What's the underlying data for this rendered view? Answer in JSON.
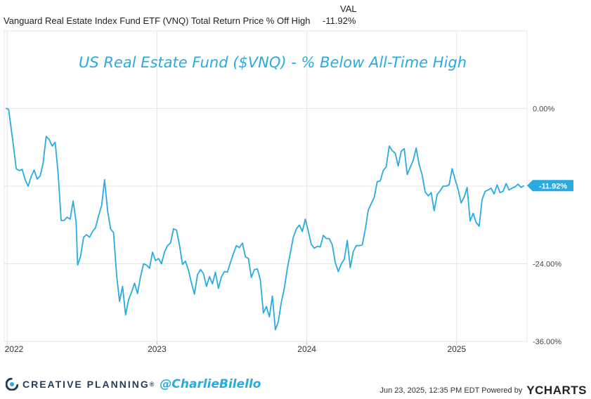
{
  "legend": {
    "val_header": "VAL",
    "series_name": "Vanguard Real Estate Index Fund ETF (VNQ) Total Return Price % Off High",
    "series_value": "-11.92%"
  },
  "footer": {
    "brand_name": "CREATIVE PLANNING",
    "brand_mark": "®",
    "handle": "@CharlieBilello",
    "timestamp": "Jun 23, 2025, 12:35 PM EDT Powered by",
    "logo_y": "Y",
    "logo_rest": "CHARTS"
  },
  "colors": {
    "line": "#29abe2",
    "title": "#29abe2",
    "grid": "#e6e6e6",
    "brand": "#1f3d5c"
  },
  "chart_data": {
    "type": "line",
    "title": "US Real Estate Fund ($VNQ) - % Below All-Time High",
    "ylim": [
      -36,
      12
    ],
    "yticks": [
      {
        "value": 0,
        "label": "0.00%"
      },
      {
        "value": -24,
        "label": "-24.00%"
      },
      {
        "value": -36,
        "label": "-36.00%"
      }
    ],
    "xticks": [
      {
        "value": 2022.0,
        "label": "2022"
      },
      {
        "value": 2023.0,
        "label": "2023"
      },
      {
        "value": 2024.0,
        "label": "2024"
      },
      {
        "value": 2025.0,
        "label": "2025"
      }
    ],
    "xlim": [
      2021.98,
      2025.47
    ],
    "grid": true,
    "end_label": "-11.92%",
    "series": [
      {
        "name": "Vanguard Real Estate Index Fund ETF (VNQ) Total Return Price % Off High",
        "points": [
          [
            2021.99,
            0.0
          ],
          [
            2022.0,
            0.0
          ],
          [
            2022.01,
            -0.2
          ],
          [
            2022.03,
            -3.8
          ],
          [
            2022.04,
            -5.5
          ],
          [
            2022.06,
            -9.3
          ],
          [
            2022.08,
            -9.6
          ],
          [
            2022.1,
            -9.4
          ],
          [
            2022.12,
            -11.0
          ],
          [
            2022.14,
            -12.0
          ],
          [
            2022.16,
            -10.5
          ],
          [
            2022.18,
            -9.5
          ],
          [
            2022.2,
            -10.9
          ],
          [
            2022.22,
            -10.4
          ],
          [
            2022.24,
            -8.4
          ],
          [
            2022.26,
            -4.3
          ],
          [
            2022.28,
            -4.8
          ],
          [
            2022.3,
            -5.8
          ],
          [
            2022.32,
            -5.2
          ],
          [
            2022.34,
            -10.0
          ],
          [
            2022.36,
            -17.3
          ],
          [
            2022.38,
            -17.3
          ],
          [
            2022.4,
            -16.8
          ],
          [
            2022.42,
            -17.1
          ],
          [
            2022.44,
            -14.3
          ],
          [
            2022.46,
            -17.5
          ],
          [
            2022.47,
            -24.2
          ],
          [
            2022.49,
            -22.8
          ],
          [
            2022.51,
            -19.9
          ],
          [
            2022.53,
            -19.5
          ],
          [
            2022.55,
            -19.9
          ],
          [
            2022.57,
            -19.0
          ],
          [
            2022.59,
            -18.4
          ],
          [
            2022.61,
            -16.6
          ],
          [
            2022.63,
            -15.0
          ],
          [
            2022.65,
            -11.0
          ],
          [
            2022.67,
            -15.8
          ],
          [
            2022.69,
            -18.6
          ],
          [
            2022.71,
            -19.2
          ],
          [
            2022.73,
            -25.7
          ],
          [
            2022.75,
            -29.8
          ],
          [
            2022.77,
            -27.5
          ],
          [
            2022.79,
            -31.9
          ],
          [
            2022.81,
            -29.6
          ],
          [
            2022.83,
            -28.4
          ],
          [
            2022.85,
            -27.0
          ],
          [
            2022.87,
            -28.6
          ],
          [
            2022.89,
            -26.0
          ],
          [
            2022.91,
            -24.0
          ],
          [
            2022.93,
            -24.2
          ],
          [
            2022.95,
            -24.7
          ],
          [
            2022.97,
            -22.2
          ],
          [
            2022.99,
            -23.5
          ],
          [
            2023.01,
            -23.2
          ],
          [
            2023.03,
            -24.0
          ],
          [
            2023.05,
            -22.2
          ],
          [
            2023.07,
            -21.2
          ],
          [
            2023.09,
            -20.8
          ],
          [
            2023.11,
            -18.6
          ],
          [
            2023.13,
            -18.8
          ],
          [
            2023.15,
            -21.1
          ],
          [
            2023.17,
            -24.1
          ],
          [
            2023.19,
            -23.6
          ],
          [
            2023.21,
            -25.0
          ],
          [
            2023.23,
            -27.0
          ],
          [
            2023.25,
            -28.7
          ],
          [
            2023.27,
            -25.7
          ],
          [
            2023.29,
            -24.9
          ],
          [
            2023.31,
            -25.5
          ],
          [
            2023.33,
            -27.5
          ],
          [
            2023.35,
            -26.0
          ],
          [
            2023.37,
            -27.1
          ],
          [
            2023.39,
            -25.3
          ],
          [
            2023.41,
            -27.8
          ],
          [
            2023.43,
            -26.0
          ],
          [
            2023.45,
            -25.2
          ],
          [
            2023.47,
            -25.3
          ],
          [
            2023.49,
            -23.8
          ],
          [
            2023.51,
            -22.4
          ],
          [
            2023.53,
            -21.2
          ],
          [
            2023.55,
            -21.5
          ],
          [
            2023.57,
            -20.8
          ],
          [
            2023.59,
            -22.9
          ],
          [
            2023.61,
            -23.2
          ],
          [
            2023.63,
            -26.1
          ],
          [
            2023.65,
            -24.9
          ],
          [
            2023.67,
            -24.8
          ],
          [
            2023.69,
            -26.5
          ],
          [
            2023.71,
            -31.6
          ],
          [
            2023.73,
            -30.6
          ],
          [
            2023.75,
            -32.2
          ],
          [
            2023.77,
            -29.0
          ],
          [
            2023.79,
            -34.2
          ],
          [
            2023.81,
            -32.9
          ],
          [
            2023.83,
            -29.9
          ],
          [
            2023.85,
            -27.8
          ],
          [
            2023.87,
            -24.7
          ],
          [
            2023.89,
            -22.3
          ],
          [
            2023.91,
            -19.9
          ],
          [
            2023.93,
            -18.6
          ],
          [
            2023.95,
            -18.0
          ],
          [
            2023.97,
            -19.0
          ],
          [
            2023.99,
            -17.1
          ],
          [
            2024.01,
            -19.0
          ],
          [
            2024.03,
            -21.0
          ],
          [
            2024.05,
            -21.6
          ],
          [
            2024.07,
            -21.3
          ],
          [
            2024.09,
            -21.4
          ],
          [
            2024.11,
            -19.6
          ],
          [
            2024.13,
            -20.1
          ],
          [
            2024.15,
            -20.1
          ],
          [
            2024.17,
            -21.1
          ],
          [
            2024.19,
            -23.8
          ],
          [
            2024.21,
            -25.2
          ],
          [
            2024.23,
            -24.0
          ],
          [
            2024.25,
            -23.3
          ],
          [
            2024.27,
            -20.4
          ],
          [
            2024.29,
            -24.6
          ],
          [
            2024.31,
            -22.1
          ],
          [
            2024.33,
            -21.2
          ],
          [
            2024.35,
            -21.2
          ],
          [
            2024.37,
            -21.1
          ],
          [
            2024.39,
            -18.7
          ],
          [
            2024.41,
            -15.7
          ],
          [
            2024.43,
            -14.7
          ],
          [
            2024.45,
            -13.7
          ],
          [
            2024.47,
            -11.3
          ],
          [
            2024.49,
            -11.2
          ],
          [
            2024.51,
            -9.6
          ],
          [
            2024.53,
            -9.0
          ],
          [
            2024.55,
            -5.8
          ],
          [
            2024.57,
            -6.5
          ],
          [
            2024.59,
            -6.9
          ],
          [
            2024.61,
            -8.9
          ],
          [
            2024.63,
            -6.6
          ],
          [
            2024.65,
            -6.2
          ],
          [
            2024.67,
            -10.2
          ],
          [
            2024.69,
            -9.1
          ],
          [
            2024.71,
            -8.0
          ],
          [
            2024.73,
            -6.1
          ],
          [
            2024.75,
            -8.7
          ],
          [
            2024.77,
            -10.3
          ],
          [
            2024.79,
            -12.9
          ],
          [
            2024.81,
            -13.5
          ],
          [
            2024.83,
            -13.0
          ],
          [
            2024.85,
            -15.8
          ],
          [
            2024.87,
            -13.3
          ],
          [
            2024.89,
            -12.7
          ],
          [
            2024.91,
            -12.0
          ],
          [
            2024.93,
            -12.0
          ],
          [
            2024.95,
            -11.8
          ],
          [
            2024.97,
            -9.3
          ],
          [
            2024.99,
            -11.0
          ],
          [
            2025.01,
            -12.5
          ],
          [
            2025.03,
            -14.6
          ],
          [
            2025.05,
            -13.7
          ],
          [
            2025.07,
            -12.2
          ],
          [
            2025.09,
            -17.4
          ],
          [
            2025.11,
            -16.2
          ],
          [
            2025.13,
            -17.6
          ],
          [
            2025.15,
            -18.2
          ],
          [
            2025.17,
            -14.1
          ],
          [
            2025.19,
            -12.8
          ],
          [
            2025.21,
            -12.6
          ],
          [
            2025.23,
            -12.3
          ],
          [
            2025.25,
            -13.2
          ],
          [
            2025.27,
            -11.8
          ],
          [
            2025.29,
            -13.0
          ],
          [
            2025.31,
            -12.8
          ],
          [
            2025.33,
            -11.6
          ],
          [
            2025.35,
            -12.6
          ],
          [
            2025.37,
            -12.3
          ],
          [
            2025.39,
            -12.1
          ],
          [
            2025.41,
            -11.7
          ],
          [
            2025.43,
            -12.2
          ],
          [
            2025.45,
            -11.92
          ]
        ]
      }
    ]
  }
}
